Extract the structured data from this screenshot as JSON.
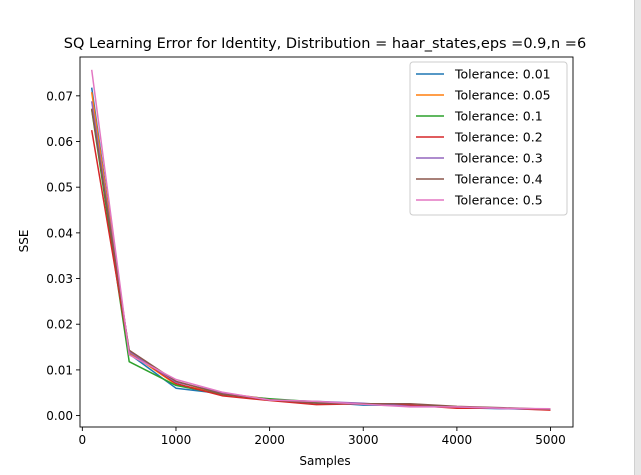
{
  "chart_data": {
    "type": "line",
    "title": "SQ Learning Error for Identity, Distribution = haar_states,eps =0.9,n =6",
    "xlabel": "Samples",
    "ylabel": "SSE",
    "xlim": [
      -25,
      5240
    ],
    "ylim": [
      -0.0025,
      0.0785
    ],
    "xticks": [
      0,
      1000,
      2000,
      3000,
      4000,
      5000
    ],
    "xtick_labels": [
      "0",
      "1000",
      "2000",
      "3000",
      "4000",
      "5000"
    ],
    "yticks": [
      0.0,
      0.01,
      0.02,
      0.03,
      0.04,
      0.05,
      0.06,
      0.07
    ],
    "ytick_labels": [
      "0.00",
      "0.01",
      "0.02",
      "0.03",
      "0.04",
      "0.05",
      "0.06",
      "0.07"
    ],
    "grid": false,
    "legend_position": "top-right",
    "x": [
      100,
      500,
      1000,
      1500,
      2000,
      2500,
      3000,
      3500,
      4000,
      4500,
      5000
    ],
    "series": [
      {
        "name": "Tolerance: 0.01",
        "color": "#1f77b4",
        "values": [
          0.0718,
          0.0135,
          0.006,
          0.0048,
          0.0035,
          0.003,
          0.0023,
          0.0022,
          0.0017,
          0.0015,
          0.0013
        ]
      },
      {
        "name": "Tolerance: 0.05",
        "color": "#ff7f0e",
        "values": [
          0.0708,
          0.0138,
          0.0068,
          0.0049,
          0.0036,
          0.0029,
          0.0026,
          0.0023,
          0.0018,
          0.0016,
          0.0014
        ]
      },
      {
        "name": "Tolerance: 0.1",
        "color": "#2ca02c",
        "values": [
          0.067,
          0.0118,
          0.0066,
          0.0046,
          0.0037,
          0.003,
          0.0025,
          0.0022,
          0.0019,
          0.0016,
          0.0014
        ]
      },
      {
        "name": "Tolerance: 0.2",
        "color": "#d62728",
        "values": [
          0.0625,
          0.014,
          0.007,
          0.0043,
          0.0033,
          0.0024,
          0.0026,
          0.0023,
          0.0016,
          0.0016,
          0.0012
        ]
      },
      {
        "name": "Tolerance: 0.3",
        "color": "#9467bd",
        "values": [
          0.0688,
          0.014,
          0.0073,
          0.005,
          0.0034,
          0.0031,
          0.0027,
          0.002,
          0.0019,
          0.0015,
          0.0015
        ]
      },
      {
        "name": "Tolerance: 0.4",
        "color": "#8c564b",
        "values": [
          0.0672,
          0.0143,
          0.0075,
          0.0047,
          0.0035,
          0.0027,
          0.0026,
          0.0026,
          0.002,
          0.0017,
          0.0014
        ]
      },
      {
        "name": "Tolerance: 0.5",
        "color": "#e377c2",
        "values": [
          0.0757,
          0.0133,
          0.0079,
          0.0051,
          0.0034,
          0.0031,
          0.0025,
          0.0019,
          0.0019,
          0.0016,
          0.0015
        ]
      }
    ]
  }
}
